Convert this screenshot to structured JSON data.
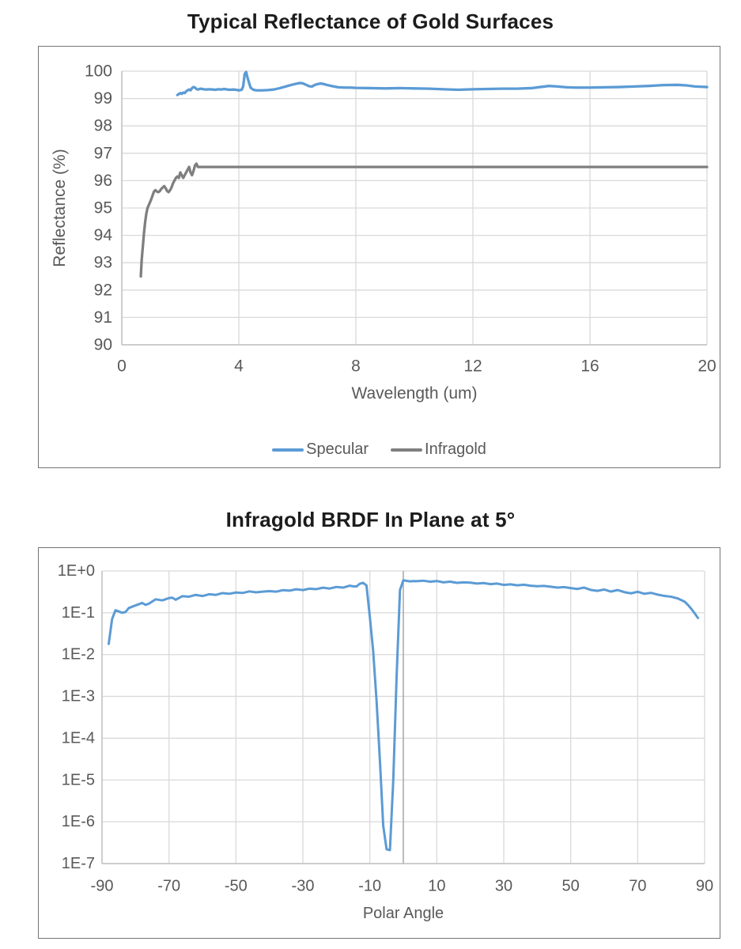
{
  "colors": {
    "specular_blue": "#5B9BD5",
    "infragold_gray": "#7F7F7F",
    "gridline": "#D9D9D9",
    "axis_line": "#BFBFBF",
    "zero_line": "#ABABAB",
    "tick_text": "#595959",
    "title_text": "#1c1c1c",
    "chart_border": "#757575",
    "background": "#FFFFFF"
  },
  "chart_data": [
    {
      "type": "line",
      "title": "Typical Reflectance of Gold Surfaces",
      "xlabel": "Wavelength (um)",
      "ylabel": "Reflectance (%)",
      "y_scale": "linear",
      "grid": true,
      "xlim": [
        0,
        20
      ],
      "ylim": [
        90,
        100
      ],
      "x_ticks": [
        0,
        4,
        8,
        12,
        16,
        20
      ],
      "y_ticks": [
        90,
        91,
        92,
        93,
        94,
        95,
        96,
        97,
        98,
        99,
        100
      ],
      "legend_position": "bottom-center",
      "series": [
        {
          "name": "Specular",
          "color": "#5B9BD5",
          "x": [
            1.9,
            2.0,
            2.05,
            2.1,
            2.15,
            2.2,
            2.25,
            2.3,
            2.35,
            2.4,
            2.45,
            2.5,
            2.55,
            2.6,
            2.7,
            2.8,
            2.9,
            3.0,
            3.1,
            3.2,
            3.3,
            3.4,
            3.5,
            3.6,
            3.7,
            3.8,
            3.9,
            4.0,
            4.1,
            4.15,
            4.2,
            4.25,
            4.3,
            4.4,
            4.5,
            4.6,
            4.8,
            5.0,
            5.2,
            5.4,
            5.6,
            5.8,
            6.0,
            6.1,
            6.2,
            6.3,
            6.4,
            6.5,
            6.6,
            6.7,
            6.8,
            6.9,
            7.0,
            7.2,
            7.4,
            7.6,
            7.8,
            8.0,
            8.5,
            9.0,
            9.5,
            10.0,
            10.5,
            11.0,
            11.5,
            12.0,
            12.5,
            13.0,
            13.5,
            14.0,
            14.3,
            14.6,
            14.9,
            15.2,
            15.5,
            16.0,
            16.5,
            17.0,
            17.5,
            18.0,
            18.5,
            19.0,
            19.3,
            19.6,
            20.0
          ],
          "y": [
            99.13,
            99.2,
            99.17,
            99.22,
            99.2,
            99.26,
            99.3,
            99.33,
            99.3,
            99.38,
            99.42,
            99.4,
            99.35,
            99.33,
            99.36,
            99.34,
            99.33,
            99.34,
            99.33,
            99.32,
            99.34,
            99.33,
            99.35,
            99.33,
            99.32,
            99.33,
            99.32,
            99.3,
            99.32,
            99.45,
            99.9,
            99.97,
            99.75,
            99.4,
            99.32,
            99.3,
            99.3,
            99.31,
            99.33,
            99.38,
            99.44,
            99.5,
            99.55,
            99.57,
            99.55,
            99.5,
            99.45,
            99.44,
            99.5,
            99.53,
            99.55,
            99.53,
            99.5,
            99.45,
            99.41,
            99.4,
            99.4,
            99.39,
            99.38,
            99.37,
            99.38,
            99.37,
            99.36,
            99.34,
            99.32,
            99.34,
            99.35,
            99.36,
            99.36,
            99.38,
            99.42,
            99.46,
            99.44,
            99.41,
            99.4,
            99.4,
            99.41,
            99.42,
            99.44,
            99.46,
            99.49,
            99.5,
            99.48,
            99.44,
            99.42
          ]
        },
        {
          "name": "Infragold",
          "color": "#7F7F7F",
          "x": [
            0.65,
            0.68,
            0.72,
            0.76,
            0.8,
            0.84,
            0.88,
            0.92,
            0.96,
            1.0,
            1.05,
            1.1,
            1.15,
            1.2,
            1.25,
            1.3,
            1.35,
            1.4,
            1.45,
            1.5,
            1.55,
            1.6,
            1.65,
            1.7,
            1.75,
            1.8,
            1.85,
            1.9,
            1.95,
            2.0,
            2.05,
            2.1,
            2.15,
            2.2,
            2.25,
            2.3,
            2.35,
            2.4,
            2.45,
            2.5,
            2.55,
            2.6,
            2.7,
            2.8,
            3.0,
            4.0,
            6.0,
            8.0,
            10.0,
            12.0,
            14.0,
            16.0,
            18.0,
            20.0
          ],
          "y": [
            92.5,
            93.1,
            93.6,
            94.1,
            94.5,
            94.8,
            95.0,
            95.1,
            95.2,
            95.3,
            95.45,
            95.6,
            95.65,
            95.6,
            95.58,
            95.62,
            95.7,
            95.75,
            95.8,
            95.72,
            95.62,
            95.58,
            95.65,
            95.75,
            95.9,
            96.0,
            96.1,
            96.15,
            96.1,
            96.3,
            96.2,
            96.1,
            96.2,
            96.3,
            96.4,
            96.5,
            96.3,
            96.2,
            96.35,
            96.55,
            96.62,
            96.5,
            96.5,
            96.5,
            96.5,
            96.5,
            96.5,
            96.5,
            96.5,
            96.5,
            96.5,
            96.5,
            96.5,
            96.5
          ]
        }
      ]
    },
    {
      "type": "line",
      "title": "Infragold BRDF In Plane at 5°",
      "xlabel": "Polar Angle",
      "ylabel": "",
      "y_scale": "log",
      "grid": true,
      "xlim": [
        -90,
        90
      ],
      "ylim": [
        1e-07,
        1
      ],
      "x_ticks": [
        -90,
        -70,
        -50,
        -30,
        -10,
        10,
        30,
        50,
        70,
        90
      ],
      "y_ticks": [
        {
          "label": "1E+0",
          "value": 1
        },
        {
          "label": "1E-1",
          "value": 0.1
        },
        {
          "label": "1E-2",
          "value": 0.01
        },
        {
          "label": "1E-3",
          "value": 0.001
        },
        {
          "label": "1E-4",
          "value": 0.0001
        },
        {
          "label": "1E-5",
          "value": 1e-05
        },
        {
          "label": "1E-6",
          "value": 1e-06
        },
        {
          "label": "1E-7",
          "value": 1e-07
        }
      ],
      "zero_axis_line": true,
      "series": [
        {
          "name": "Infragold BRDF",
          "color": "#5B9BD5",
          "x": [
            -88,
            -87,
            -86,
            -85,
            -84,
            -83,
            -82,
            -80,
            -78,
            -77,
            -76,
            -74,
            -72,
            -70,
            -69,
            -68,
            -66,
            -64,
            -62,
            -60,
            -58,
            -56,
            -54,
            -52,
            -50,
            -48,
            -46,
            -44,
            -42,
            -40,
            -38,
            -36,
            -34,
            -32,
            -30,
            -28,
            -26,
            -24,
            -22,
            -20,
            -18,
            -16,
            -15,
            -14,
            -13,
            -12,
            -11,
            -10,
            -9,
            -8,
            -7,
            -6,
            -5,
            -4,
            -3,
            -2,
            -1,
            0,
            1,
            2,
            3,
            4,
            6,
            8,
            10,
            12,
            14,
            16,
            18,
            20,
            22,
            24,
            26,
            28,
            30,
            32,
            34,
            36,
            38,
            40,
            42,
            44,
            46,
            48,
            50,
            52,
            54,
            56,
            58,
            60,
            62,
            64,
            66,
            68,
            70,
            72,
            74,
            76,
            78,
            80,
            82,
            84,
            85,
            86,
            87,
            88
          ],
          "y": [
            0.018,
            0.07,
            0.115,
            0.108,
            0.1,
            0.104,
            0.13,
            0.15,
            0.172,
            0.155,
            0.165,
            0.21,
            0.198,
            0.225,
            0.23,
            0.205,
            0.25,
            0.243,
            0.268,
            0.252,
            0.278,
            0.268,
            0.296,
            0.285,
            0.305,
            0.298,
            0.325,
            0.308,
            0.32,
            0.33,
            0.32,
            0.347,
            0.338,
            0.365,
            0.35,
            0.378,
            0.368,
            0.398,
            0.38,
            0.415,
            0.4,
            0.445,
            0.43,
            0.425,
            0.495,
            0.52,
            0.45,
            0.08,
            0.012,
            0.0008,
            3e-05,
            8e-07,
            2.2e-07,
            2.1e-07,
            1e-05,
            0.003,
            0.35,
            0.6,
            0.58,
            0.565,
            0.575,
            0.57,
            0.585,
            0.555,
            0.575,
            0.535,
            0.555,
            0.52,
            0.535,
            0.525,
            0.5,
            0.515,
            0.485,
            0.5,
            0.465,
            0.48,
            0.455,
            0.47,
            0.445,
            0.432,
            0.44,
            0.42,
            0.4,
            0.412,
            0.39,
            0.372,
            0.4,
            0.352,
            0.335,
            0.36,
            0.322,
            0.35,
            0.312,
            0.292,
            0.318,
            0.285,
            0.3,
            0.272,
            0.253,
            0.242,
            0.22,
            0.185,
            0.155,
            0.125,
            0.098,
            0.075
          ]
        }
      ]
    }
  ]
}
